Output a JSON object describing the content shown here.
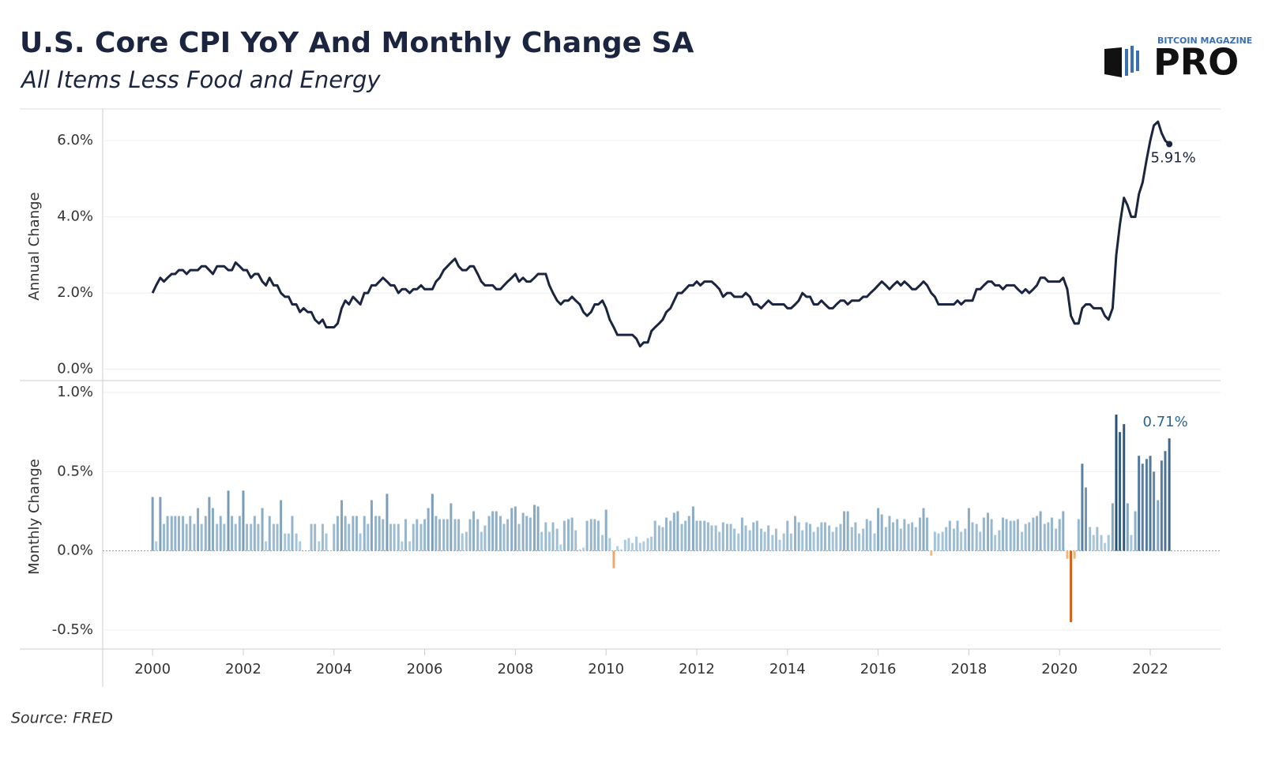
{
  "header": {
    "title": "U.S. Core CPI YoY And Monthly Change SA",
    "subtitle": "All Items Less Food and Energy",
    "logo_top": "BITCOIN MAGAZINE",
    "logo_main": "PRO"
  },
  "source": "Source: FRED",
  "chart_data": [
    {
      "type": "line",
      "y_label": "Annual Change",
      "color": "#1c2540",
      "annotation": "5.91%",
      "grid": true,
      "xlim": [
        1998.9,
        2023.55
      ],
      "ylim": [
        -0.3,
        6.75
      ],
      "yticks": [
        {
          "value": 0,
          "label": "0.0%"
        },
        {
          "value": 2,
          "label": "2.0%"
        },
        {
          "value": 4,
          "label": "4.0%"
        },
        {
          "value": 6,
          "label": "6.0%"
        }
      ],
      "x": [
        2000,
        2000.08,
        2000.17,
        2000.25,
        2000.33,
        2000.42,
        2000.5,
        2000.58,
        2000.67,
        2000.75,
        2000.83,
        2000.92,
        2001,
        2001.08,
        2001.17,
        2001.25,
        2001.33,
        2001.42,
        2001.5,
        2001.58,
        2001.67,
        2001.75,
        2001.83,
        2001.92,
        2002,
        2002.08,
        2002.17,
        2002.25,
        2002.33,
        2002.42,
        2002.5,
        2002.58,
        2002.67,
        2002.75,
        2002.83,
        2002.92,
        2003,
        2003.08,
        2003.17,
        2003.25,
        2003.33,
        2003.42,
        2003.5,
        2003.58,
        2003.67,
        2003.75,
        2003.83,
        2003.92,
        2004,
        2004.08,
        2004.17,
        2004.25,
        2004.33,
        2004.42,
        2004.5,
        2004.58,
        2004.67,
        2004.75,
        2004.83,
        2004.92,
        2005,
        2005.08,
        2005.17,
        2005.25,
        2005.33,
        2005.42,
        2005.5,
        2005.58,
        2005.67,
        2005.75,
        2005.83,
        2005.92,
        2006,
        2006.08,
        2006.17,
        2006.25,
        2006.33,
        2006.42,
        2006.5,
        2006.58,
        2006.67,
        2006.75,
        2006.83,
        2006.92,
        2007,
        2007.08,
        2007.17,
        2007.25,
        2007.33,
        2007.42,
        2007.5,
        2007.58,
        2007.67,
        2007.75,
        2007.83,
        2007.92,
        2008,
        2008.08,
        2008.17,
        2008.25,
        2008.33,
        2008.42,
        2008.5,
        2008.58,
        2008.67,
        2008.75,
        2008.83,
        2008.92,
        2009,
        2009.08,
        2009.17,
        2009.25,
        2009.33,
        2009.42,
        2009.5,
        2009.58,
        2009.67,
        2009.75,
        2009.83,
        2009.92,
        2010,
        2010.08,
        2010.17,
        2010.25,
        2010.33,
        2010.42,
        2010.5,
        2010.58,
        2010.67,
        2010.75,
        2010.83,
        2010.92,
        2011,
        2011.08,
        2011.17,
        2011.25,
        2011.33,
        2011.42,
        2011.5,
        2011.58,
        2011.67,
        2011.75,
        2011.83,
        2011.92,
        2012,
        2012.08,
        2012.17,
        2012.25,
        2012.33,
        2012.42,
        2012.5,
        2012.58,
        2012.67,
        2012.75,
        2012.83,
        2012.92,
        2013,
        2013.08,
        2013.17,
        2013.25,
        2013.33,
        2013.42,
        2013.5,
        2013.58,
        2013.67,
        2013.75,
        2013.83,
        2013.92,
        2014,
        2014.08,
        2014.17,
        2014.25,
        2014.33,
        2014.42,
        2014.5,
        2014.58,
        2014.67,
        2014.75,
        2014.83,
        2014.92,
        2015,
        2015.08,
        2015.17,
        2015.25,
        2015.33,
        2015.42,
        2015.5,
        2015.58,
        2015.67,
        2015.75,
        2015.83,
        2015.92,
        2016,
        2016.08,
        2016.17,
        2016.25,
        2016.33,
        2016.42,
        2016.5,
        2016.58,
        2016.67,
        2016.75,
        2016.83,
        2016.92,
        2017,
        2017.08,
        2017.17,
        2017.25,
        2017.33,
        2017.42,
        2017.5,
        2017.58,
        2017.67,
        2017.75,
        2017.83,
        2017.92,
        2018,
        2018.08,
        2018.17,
        2018.25,
        2018.33,
        2018.42,
        2018.5,
        2018.58,
        2018.67,
        2018.75,
        2018.83,
        2018.92,
        2019,
        2019.08,
        2019.17,
        2019.25,
        2019.33,
        2019.42,
        2019.5,
        2019.58,
        2019.67,
        2019.75,
        2019.83,
        2019.92,
        2020,
        2020.08,
        2020.17,
        2020.25,
        2020.33,
        2020.42,
        2020.5,
        2020.58,
        2020.67,
        2020.75,
        2020.83,
        2020.92,
        2021,
        2021.08,
        2021.17,
        2021.25,
        2021.33,
        2021.42,
        2021.5,
        2021.58,
        2021.67,
        2021.75,
        2021.83,
        2021.92,
        2022,
        2022.08,
        2022.17,
        2022.25,
        2022.33,
        2022.42
      ],
      "values": [
        2.0,
        2.2,
        2.4,
        2.3,
        2.4,
        2.5,
        2.5,
        2.6,
        2.6,
        2.5,
        2.6,
        2.6,
        2.6,
        2.7,
        2.7,
        2.6,
        2.5,
        2.7,
        2.7,
        2.7,
        2.6,
        2.6,
        2.8,
        2.7,
        2.6,
        2.6,
        2.4,
        2.5,
        2.5,
        2.3,
        2.2,
        2.4,
        2.2,
        2.2,
        2.0,
        1.9,
        1.9,
        1.7,
        1.7,
        1.5,
        1.6,
        1.5,
        1.5,
        1.3,
        1.2,
        1.3,
        1.1,
        1.1,
        1.1,
        1.2,
        1.6,
        1.8,
        1.7,
        1.9,
        1.8,
        1.7,
        2.0,
        2.0,
        2.2,
        2.2,
        2.3,
        2.4,
        2.3,
        2.2,
        2.2,
        2.0,
        2.1,
        2.1,
        2.0,
        2.1,
        2.1,
        2.2,
        2.1,
        2.1,
        2.1,
        2.3,
        2.4,
        2.6,
        2.7,
        2.8,
        2.9,
        2.7,
        2.6,
        2.6,
        2.7,
        2.7,
        2.5,
        2.3,
        2.2,
        2.2,
        2.2,
        2.1,
        2.1,
        2.2,
        2.3,
        2.4,
        2.5,
        2.3,
        2.4,
        2.3,
        2.3,
        2.4,
        2.5,
        2.5,
        2.5,
        2.2,
        2.0,
        1.8,
        1.7,
        1.8,
        1.8,
        1.9,
        1.8,
        1.7,
        1.5,
        1.4,
        1.5,
        1.7,
        1.7,
        1.8,
        1.6,
        1.3,
        1.1,
        0.9,
        0.9,
        0.9,
        0.9,
        0.9,
        0.8,
        0.6,
        0.7,
        0.7,
        1.0,
        1.1,
        1.2,
        1.3,
        1.5,
        1.6,
        1.8,
        2.0,
        2.0,
        2.1,
        2.2,
        2.2,
        2.3,
        2.2,
        2.3,
        2.3,
        2.3,
        2.2,
        2.1,
        1.9,
        2.0,
        2.0,
        1.9,
        1.9,
        1.9,
        2.0,
        1.9,
        1.7,
        1.7,
        1.6,
        1.7,
        1.8,
        1.7,
        1.7,
        1.7,
        1.7,
        1.6,
        1.6,
        1.7,
        1.8,
        2.0,
        1.9,
        1.9,
        1.7,
        1.7,
        1.8,
        1.7,
        1.6,
        1.6,
        1.7,
        1.8,
        1.8,
        1.7,
        1.8,
        1.8,
        1.8,
        1.9,
        1.9,
        2.0,
        2.1,
        2.2,
        2.3,
        2.2,
        2.1,
        2.2,
        2.3,
        2.2,
        2.3,
        2.2,
        2.1,
        2.1,
        2.2,
        2.3,
        2.2,
        2.0,
        1.9,
        1.7,
        1.7,
        1.7,
        1.7,
        1.7,
        1.8,
        1.7,
        1.8,
        1.8,
        1.8,
        2.1,
        2.1,
        2.2,
        2.3,
        2.3,
        2.2,
        2.2,
        2.1,
        2.2,
        2.2,
        2.2,
        2.1,
        2.0,
        2.1,
        2.0,
        2.1,
        2.2,
        2.4,
        2.4,
        2.3,
        2.3,
        2.3,
        2.3,
        2.4,
        2.1,
        1.4,
        1.2,
        1.2,
        1.6,
        1.7,
        1.7,
        1.6,
        1.6,
        1.6,
        1.4,
        1.3,
        1.6,
        3.0,
        3.8,
        4.5,
        4.3,
        4.0,
        4.0,
        4.6,
        4.9,
        5.5,
        6.0,
        6.4,
        6.5,
        6.2,
        6.0,
        5.91
      ]
    },
    {
      "type": "bar",
      "y_label": "Monthly Change",
      "annotation": "0.71%",
      "grid": true,
      "colors": {
        "positive_low": "#b8d5e8",
        "positive_high": "#1f4a75",
        "negative_low": "#f8bf7e",
        "negative_high": "#d9611a"
      },
      "xlim": [
        1998.9,
        2023.55
      ],
      "ylim": [
        -0.62,
        1.05
      ],
      "yticks": [
        {
          "value": -0.5,
          "label": "-0.5%"
        },
        {
          "value": 0,
          "label": "0.0%"
        },
        {
          "value": 0.5,
          "label": "0.5%"
        },
        {
          "value": 1,
          "label": "1.0%"
        }
      ],
      "xticks": [
        2000,
        2002,
        2004,
        2006,
        2008,
        2010,
        2012,
        2014,
        2016,
        2018,
        2020,
        2022
      ],
      "x": [
        2000,
        2000.08,
        2000.17,
        2000.25,
        2000.33,
        2000.42,
        2000.5,
        2000.58,
        2000.67,
        2000.75,
        2000.83,
        2000.92,
        2001,
        2001.08,
        2001.17,
        2001.25,
        2001.33,
        2001.42,
        2001.5,
        2001.58,
        2001.67,
        2001.75,
        2001.83,
        2001.92,
        2002,
        2002.08,
        2002.17,
        2002.25,
        2002.33,
        2002.42,
        2002.5,
        2002.58,
        2002.67,
        2002.75,
        2002.83,
        2002.92,
        2003,
        2003.08,
        2003.17,
        2003.25,
        2003.33,
        2003.42,
        2003.5,
        2003.58,
        2003.67,
        2003.75,
        2003.83,
        2003.92,
        2004,
        2004.08,
        2004.17,
        2004.25,
        2004.33,
        2004.42,
        2004.5,
        2004.58,
        2004.67,
        2004.75,
        2004.83,
        2004.92,
        2005,
        2005.08,
        2005.17,
        2005.25,
        2005.33,
        2005.42,
        2005.5,
        2005.58,
        2005.67,
        2005.75,
        2005.83,
        2005.92,
        2006,
        2006.08,
        2006.17,
        2006.25,
        2006.33,
        2006.42,
        2006.5,
        2006.58,
        2006.67,
        2006.75,
        2006.83,
        2006.92,
        2007,
        2007.08,
        2007.17,
        2007.25,
        2007.33,
        2007.42,
        2007.5,
        2007.58,
        2007.67,
        2007.75,
        2007.83,
        2007.92,
        2008,
        2008.08,
        2008.17,
        2008.25,
        2008.33,
        2008.42,
        2008.5,
        2008.58,
        2008.67,
        2008.75,
        2008.83,
        2008.92,
        2009,
        2009.08,
        2009.17,
        2009.25,
        2009.33,
        2009.42,
        2009.5,
        2009.58,
        2009.67,
        2009.75,
        2009.83,
        2009.92,
        2010,
        2010.08,
        2010.17,
        2010.25,
        2010.33,
        2010.42,
        2010.5,
        2010.58,
        2010.67,
        2010.75,
        2010.83,
        2010.92,
        2011,
        2011.08,
        2011.17,
        2011.25,
        2011.33,
        2011.42,
        2011.5,
        2011.58,
        2011.67,
        2011.75,
        2011.83,
        2011.92,
        2012,
        2012.08,
        2012.17,
        2012.25,
        2012.33,
        2012.42,
        2012.5,
        2012.58,
        2012.67,
        2012.75,
        2012.83,
        2012.92,
        2013,
        2013.08,
        2013.17,
        2013.25,
        2013.33,
        2013.42,
        2013.5,
        2013.58,
        2013.67,
        2013.75,
        2013.83,
        2013.92,
        2014,
        2014.08,
        2014.17,
        2014.25,
        2014.33,
        2014.42,
        2014.5,
        2014.58,
        2014.67,
        2014.75,
        2014.83,
        2014.92,
        2015,
        2015.08,
        2015.17,
        2015.25,
        2015.33,
        2015.42,
        2015.5,
        2015.58,
        2015.67,
        2015.75,
        2015.83,
        2015.92,
        2016,
        2016.08,
        2016.17,
        2016.25,
        2016.33,
        2016.42,
        2016.5,
        2016.58,
        2016.67,
        2016.75,
        2016.83,
        2016.92,
        2017,
        2017.08,
        2017.17,
        2017.25,
        2017.33,
        2017.42,
        2017.5,
        2017.58,
        2017.67,
        2017.75,
        2017.83,
        2017.92,
        2018,
        2018.08,
        2018.17,
        2018.25,
        2018.33,
        2018.42,
        2018.5,
        2018.58,
        2018.67,
        2018.75,
        2018.83,
        2018.92,
        2019,
        2019.08,
        2019.17,
        2019.25,
        2019.33,
        2019.42,
        2019.5,
        2019.58,
        2019.67,
        2019.75,
        2019.83,
        2019.92,
        2020,
        2020.08,
        2020.17,
        2020.25,
        2020.33,
        2020.42,
        2020.5,
        2020.58,
        2020.67,
        2020.75,
        2020.83,
        2020.92,
        2021,
        2021.08,
        2021.17,
        2021.25,
        2021.33,
        2021.42,
        2021.5,
        2021.58,
        2021.67,
        2021.75,
        2021.83,
        2021.92,
        2022,
        2022.08,
        2022.17,
        2022.25,
        2022.33,
        2022.42
      ],
      "values": [
        0.34,
        0.06,
        0.34,
        0.17,
        0.22,
        0.22,
        0.22,
        0.22,
        0.22,
        0.17,
        0.22,
        0.17,
        0.27,
        0.17,
        0.22,
        0.34,
        0.27,
        0.17,
        0.22,
        0.17,
        0.38,
        0.22,
        0.17,
        0.22,
        0.38,
        0.17,
        0.17,
        0.22,
        0.17,
        0.27,
        0.06,
        0.22,
        0.17,
        0.17,
        0.32,
        0.11,
        0.11,
        0.22,
        0.11,
        0.06,
        0.0,
        0.0,
        0.17,
        0.17,
        0.06,
        0.17,
        0.11,
        0.0,
        0.17,
        0.22,
        0.32,
        0.22,
        0.17,
        0.22,
        0.22,
        0.11,
        0.22,
        0.17,
        0.32,
        0.22,
        0.22,
        0.2,
        0.36,
        0.17,
        0.17,
        0.17,
        0.06,
        0.2,
        0.06,
        0.17,
        0.2,
        0.17,
        0.2,
        0.27,
        0.36,
        0.22,
        0.2,
        0.2,
        0.2,
        0.3,
        0.2,
        0.2,
        0.11,
        0.12,
        0.2,
        0.25,
        0.2,
        0.12,
        0.16,
        0.22,
        0.25,
        0.25,
        0.22,
        0.17,
        0.2,
        0.27,
        0.28,
        0.17,
        0.24,
        0.22,
        0.21,
        0.29,
        0.28,
        0.12,
        0.18,
        0.12,
        0.18,
        0.14,
        0.04,
        0.19,
        0.2,
        0.21,
        0.13,
        0.01,
        0.02,
        0.19,
        0.2,
        0.2,
        0.19,
        0.1,
        0.26,
        0.08,
        -0.11,
        0.03,
        0.01,
        0.07,
        0.08,
        0.05,
        0.09,
        0.05,
        0.06,
        0.08,
        0.09,
        0.19,
        0.16,
        0.15,
        0.21,
        0.19,
        0.24,
        0.25,
        0.17,
        0.19,
        0.22,
        0.28,
        0.19,
        0.19,
        0.19,
        0.18,
        0.16,
        0.16,
        0.12,
        0.18,
        0.17,
        0.17,
        0.14,
        0.11,
        0.21,
        0.16,
        0.13,
        0.18,
        0.19,
        0.14,
        0.12,
        0.16,
        0.1,
        0.14,
        0.07,
        0.11,
        0.19,
        0.11,
        0.22,
        0.18,
        0.13,
        0.18,
        0.17,
        0.12,
        0.15,
        0.18,
        0.18,
        0.16,
        0.12,
        0.15,
        0.17,
        0.25,
        0.25,
        0.15,
        0.18,
        0.11,
        0.14,
        0.2,
        0.19,
        0.11,
        0.27,
        0.23,
        0.15,
        0.22,
        0.18,
        0.2,
        0.14,
        0.2,
        0.17,
        0.18,
        0.15,
        0.21,
        0.27,
        0.21,
        -0.03,
        0.12,
        0.11,
        0.12,
        0.15,
        0.19,
        0.14,
        0.19,
        0.12,
        0.14,
        0.27,
        0.18,
        0.17,
        0.12,
        0.21,
        0.24,
        0.2,
        0.1,
        0.13,
        0.21,
        0.2,
        0.19,
        0.19,
        0.2,
        0.12,
        0.17,
        0.18,
        0.21,
        0.22,
        0.25,
        0.17,
        0.18,
        0.21,
        0.14,
        0.2,
        0.25,
        -0.05,
        -0.45,
        -0.05,
        0.2,
        0.55,
        0.4,
        0.15,
        0.1,
        0.15,
        0.1,
        0.05,
        0.1,
        0.3,
        0.86,
        0.75,
        0.8,
        0.3,
        0.1,
        0.25,
        0.6,
        0.55,
        0.58,
        0.6,
        0.5,
        0.32,
        0.57,
        0.63,
        0.71
      ]
    }
  ]
}
